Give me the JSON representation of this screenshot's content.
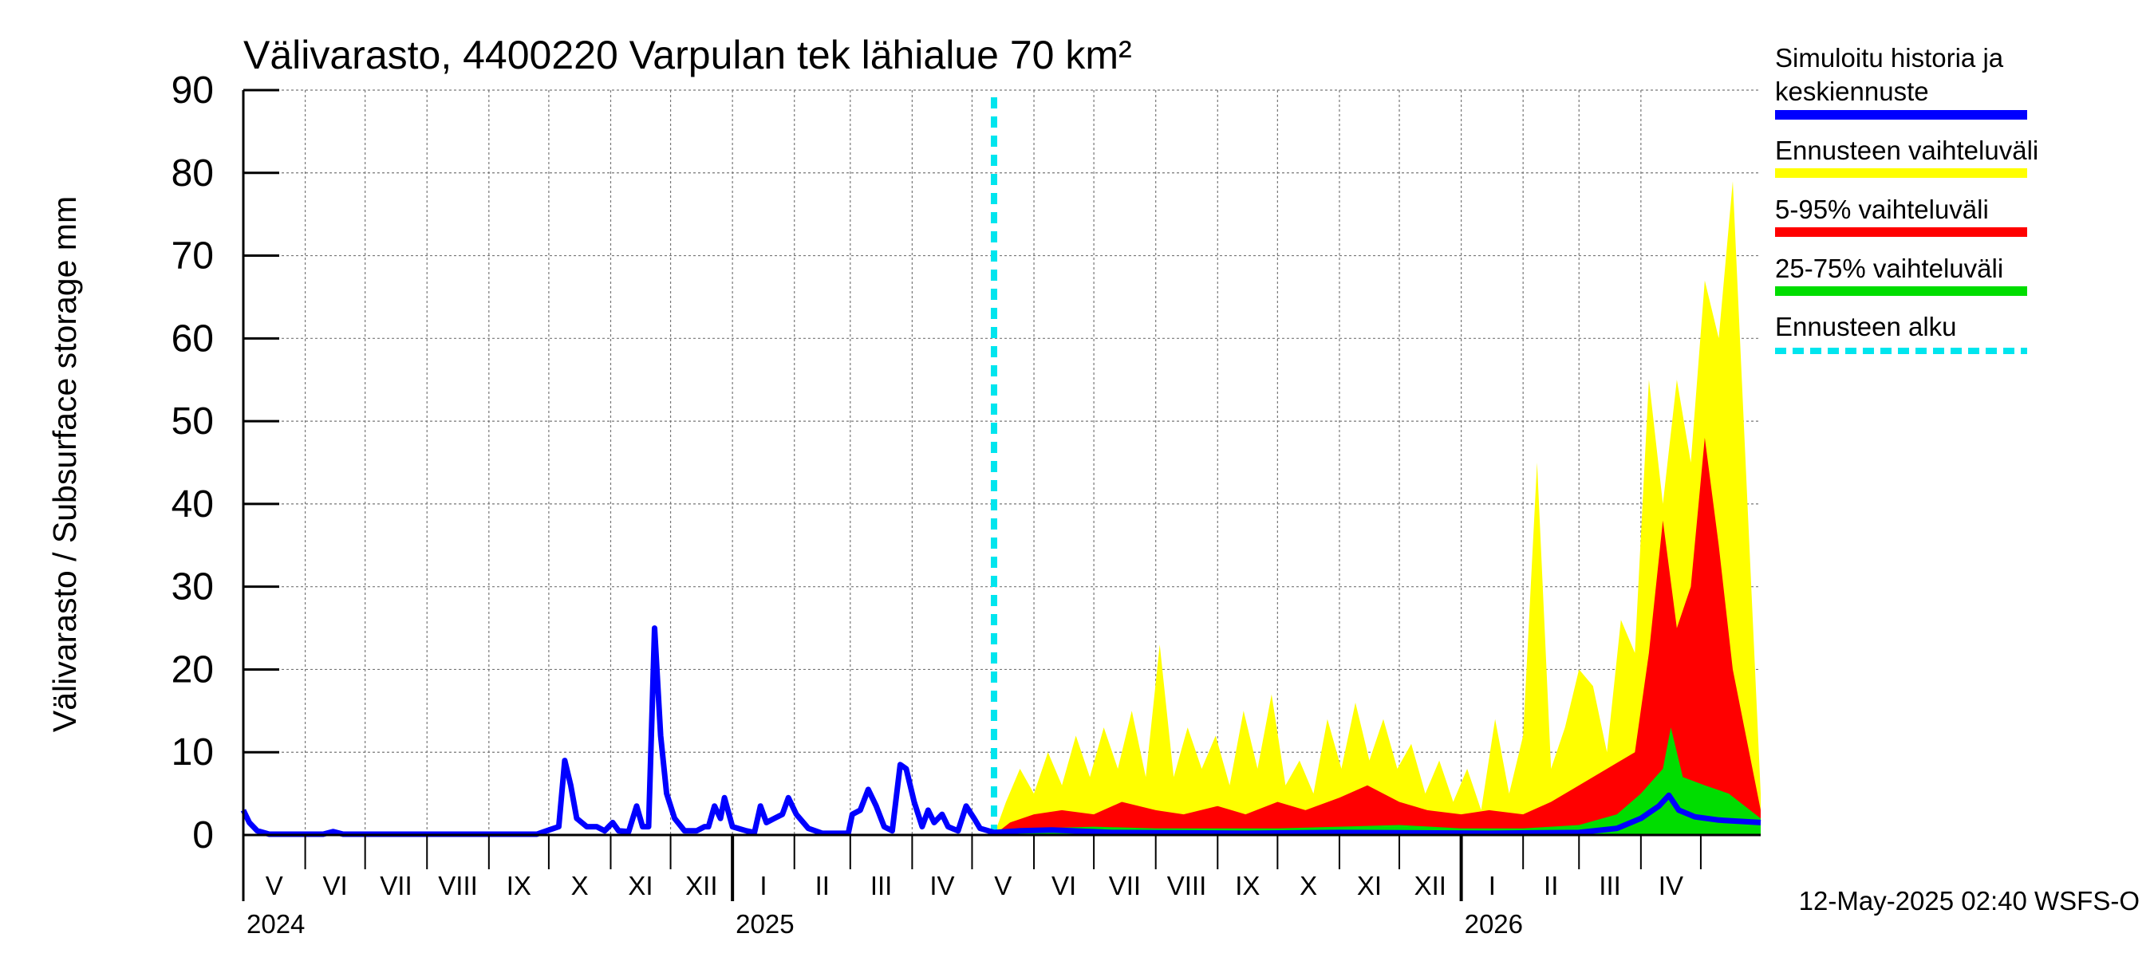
{
  "chart_data": {
    "type": "area",
    "title": "Välivarasto, 4400220 Varpulan tek lähialue 70 km²",
    "ylabel": "Välivarasto / Subsurface storage  mm",
    "ylim": [
      0,
      90
    ],
    "yticks": [
      0,
      10,
      20,
      30,
      40,
      50,
      60,
      70,
      80,
      90
    ],
    "xlim": [
      "2024-05-01",
      "2026-05-31"
    ],
    "grid": true,
    "months": [
      "V",
      "VI",
      "VII",
      "VIII",
      "IX",
      "X",
      "XI",
      "XII",
      "I",
      "II",
      "III",
      "IV",
      "V",
      "VI",
      "VII",
      "VIII",
      "IX",
      "X",
      "XI",
      "XII",
      "I",
      "II",
      "III",
      "IV"
    ],
    "years": [
      "2024",
      "2025",
      "2026"
    ],
    "forecast_start": "2025-05-12",
    "legend": {
      "placement": "right",
      "entries": [
        {
          "label": "Simuloitu historia ja keskiennuste",
          "color": "#0000ff"
        },
        {
          "label": "Ennusteen vaihteluväli",
          "color": "#ffff00"
        },
        {
          "label": "5-95% vaihteluväli",
          "color": "#ff0000"
        },
        {
          "label": "25-75% vaihteluväli",
          "color": "#00dd00"
        },
        {
          "label": "Ennusteen alku",
          "color": "#00e5ee"
        }
      ]
    },
    "series": [
      {
        "name": "Simuloitu historia ja keskiennuste",
        "color": "#0000ff",
        "points": [
          [
            "2024-05-01",
            3.0
          ],
          [
            "2024-05-04",
            1.5
          ],
          [
            "2024-05-08",
            0.5
          ],
          [
            "2024-05-14",
            0.1
          ],
          [
            "2024-06-10",
            0.1
          ],
          [
            "2024-06-15",
            0.4
          ],
          [
            "2024-06-20",
            0.1
          ],
          [
            "2024-09-25",
            0.1
          ],
          [
            "2024-10-01",
            0.6
          ],
          [
            "2024-10-06",
            1.0
          ],
          [
            "2024-10-09",
            9.0
          ],
          [
            "2024-10-12",
            6.0
          ],
          [
            "2024-10-15",
            2.0
          ],
          [
            "2024-10-20",
            1.0
          ],
          [
            "2024-10-25",
            1.0
          ],
          [
            "2024-10-29",
            0.5
          ],
          [
            "2024-11-02",
            1.5
          ],
          [
            "2024-11-05",
            0.5
          ],
          [
            "2024-11-10",
            0.4
          ],
          [
            "2024-11-14",
            3.5
          ],
          [
            "2024-11-17",
            1.0
          ],
          [
            "2024-11-20",
            1.0
          ],
          [
            "2024-11-23",
            25.0
          ],
          [
            "2024-11-26",
            12.0
          ],
          [
            "2024-11-29",
            5.0
          ],
          [
            "2024-12-03",
            2.0
          ],
          [
            "2024-12-08",
            0.5
          ],
          [
            "2024-12-14",
            0.5
          ],
          [
            "2024-12-18",
            1.0
          ],
          [
            "2024-12-20",
            1.0
          ],
          [
            "2024-12-23",
            3.5
          ],
          [
            "2024-12-26",
            2.0
          ],
          [
            "2024-12-28",
            4.5
          ],
          [
            "2025-01-01",
            1.0
          ],
          [
            "2025-01-08",
            0.5
          ],
          [
            "2025-01-12",
            0.3
          ],
          [
            "2025-01-15",
            3.5
          ],
          [
            "2025-01-18",
            1.5
          ],
          [
            "2025-01-22",
            2.0
          ],
          [
            "2025-01-26",
            2.5
          ],
          [
            "2025-01-29",
            4.5
          ],
          [
            "2025-02-02",
            2.5
          ],
          [
            "2025-02-08",
            0.8
          ],
          [
            "2025-02-15",
            0.2
          ],
          [
            "2025-02-28",
            0.2
          ],
          [
            "2025-03-02",
            2.5
          ],
          [
            "2025-03-06",
            3.0
          ],
          [
            "2025-03-10",
            5.5
          ],
          [
            "2025-03-14",
            3.5
          ],
          [
            "2025-03-18",
            1.0
          ],
          [
            "2025-03-22",
            0.5
          ],
          [
            "2025-03-26",
            8.5
          ],
          [
            "2025-03-29",
            8.0
          ],
          [
            "2025-04-02",
            4.0
          ],
          [
            "2025-04-06",
            1.0
          ],
          [
            "2025-04-09",
            3.0
          ],
          [
            "2025-04-12",
            1.5
          ],
          [
            "2025-04-16",
            2.5
          ],
          [
            "2025-04-19",
            1.0
          ],
          [
            "2025-04-24",
            0.5
          ],
          [
            "2025-04-28",
            3.5
          ],
          [
            "2025-05-02",
            2.0
          ],
          [
            "2025-05-05",
            0.8
          ],
          [
            "2025-05-12",
            0.3
          ],
          [
            "2025-05-25",
            0.5
          ],
          [
            "2025-06-10",
            0.6
          ],
          [
            "2025-07-10",
            0.3
          ],
          [
            "2025-09-15",
            0.2
          ],
          [
            "2025-11-01",
            0.3
          ],
          [
            "2026-01-15",
            0.2
          ],
          [
            "2026-03-01",
            0.3
          ],
          [
            "2026-03-20",
            0.8
          ],
          [
            "2026-04-01",
            2.0
          ],
          [
            "2026-04-10",
            3.5
          ],
          [
            "2026-04-15",
            4.8
          ],
          [
            "2026-04-20",
            3.0
          ],
          [
            "2026-04-28",
            2.2
          ],
          [
            "2026-05-10",
            1.8
          ],
          [
            "2026-05-31",
            1.5
          ]
        ]
      },
      {
        "name": "Ennusteen vaihteluväli",
        "color": "#ffff00",
        "points": [
          [
            "2025-05-12",
            0.0
          ],
          [
            "2025-05-18",
            4.0
          ],
          [
            "2025-05-25",
            8.0
          ],
          [
            "2025-06-01",
            5.0
          ],
          [
            "2025-06-08",
            10.0
          ],
          [
            "2025-06-15",
            6.0
          ],
          [
            "2025-06-22",
            12.0
          ],
          [
            "2025-06-29",
            7.0
          ],
          [
            "2025-07-06",
            13.0
          ],
          [
            "2025-07-13",
            8.0
          ],
          [
            "2025-07-20",
            15.0
          ],
          [
            "2025-07-27",
            7.0
          ],
          [
            "2025-08-03",
            23.0
          ],
          [
            "2025-08-10",
            7.0
          ],
          [
            "2025-08-17",
            13.0
          ],
          [
            "2025-08-24",
            8.0
          ],
          [
            "2025-08-31",
            12.0
          ],
          [
            "2025-09-07",
            6.0
          ],
          [
            "2025-09-14",
            15.0
          ],
          [
            "2025-09-21",
            8.0
          ],
          [
            "2025-09-28",
            17.0
          ],
          [
            "2025-10-05",
            6.0
          ],
          [
            "2025-10-12",
            9.0
          ],
          [
            "2025-10-19",
            5.0
          ],
          [
            "2025-10-26",
            14.0
          ],
          [
            "2025-11-02",
            8.0
          ],
          [
            "2025-11-09",
            16.0
          ],
          [
            "2025-11-16",
            9.0
          ],
          [
            "2025-11-23",
            14.0
          ],
          [
            "2025-11-30",
            8.0
          ],
          [
            "2025-12-07",
            11.0
          ],
          [
            "2025-12-14",
            5.0
          ],
          [
            "2025-12-21",
            9.0
          ],
          [
            "2025-12-28",
            4.0
          ],
          [
            "2026-01-04",
            8.0
          ],
          [
            "2026-01-11",
            3.0
          ],
          [
            "2026-01-18",
            14.0
          ],
          [
            "2026-01-25",
            5.0
          ],
          [
            "2026-02-01",
            12.0
          ],
          [
            "2026-02-08",
            45.0
          ],
          [
            "2026-02-15",
            8.0
          ],
          [
            "2026-02-22",
            13.0
          ],
          [
            "2026-03-01",
            20.0
          ],
          [
            "2026-03-08",
            18.0
          ],
          [
            "2026-03-15",
            10.0
          ],
          [
            "2026-03-22",
            26.0
          ],
          [
            "2026-03-29",
            22.0
          ],
          [
            "2026-04-05",
            55.0
          ],
          [
            "2026-04-12",
            40.0
          ],
          [
            "2026-04-19",
            55.0
          ],
          [
            "2026-04-26",
            45.0
          ],
          [
            "2026-05-03",
            67.0
          ],
          [
            "2026-05-10",
            60.0
          ],
          [
            "2026-05-17",
            79.0
          ],
          [
            "2026-05-31",
            5.0
          ]
        ]
      },
      {
        "name": "5-95% vaihteluväli",
        "color": "#ff0000",
        "points": [
          [
            "2025-05-12",
            0.0
          ],
          [
            "2025-05-20",
            1.5
          ],
          [
            "2025-06-01",
            2.5
          ],
          [
            "2025-06-15",
            3.0
          ],
          [
            "2025-07-01",
            2.5
          ],
          [
            "2025-07-15",
            4.0
          ],
          [
            "2025-08-01",
            3.0
          ],
          [
            "2025-08-15",
            2.5
          ],
          [
            "2025-09-01",
            3.5
          ],
          [
            "2025-09-15",
            2.5
          ],
          [
            "2025-10-01",
            4.0
          ],
          [
            "2025-10-15",
            3.0
          ],
          [
            "2025-11-01",
            4.5
          ],
          [
            "2025-11-15",
            6.0
          ],
          [
            "2025-12-01",
            4.0
          ],
          [
            "2025-12-15",
            3.0
          ],
          [
            "2026-01-01",
            2.5
          ],
          [
            "2026-01-15",
            3.0
          ],
          [
            "2026-02-01",
            2.5
          ],
          [
            "2026-02-15",
            4.0
          ],
          [
            "2026-03-01",
            6.0
          ],
          [
            "2026-03-15",
            8.0
          ],
          [
            "2026-03-29",
            10.0
          ],
          [
            "2026-04-05",
            22.0
          ],
          [
            "2026-04-12",
            38.0
          ],
          [
            "2026-04-19",
            25.0
          ],
          [
            "2026-04-26",
            30.0
          ],
          [
            "2026-05-03",
            48.0
          ],
          [
            "2026-05-10",
            35.0
          ],
          [
            "2026-05-17",
            20.0
          ],
          [
            "2026-05-31",
            3.0
          ]
        ]
      },
      {
        "name": "25-75% vaihteluväli",
        "color": "#00dd00",
        "points": [
          [
            "2025-05-12",
            0.0
          ],
          [
            "2025-06-01",
            0.8
          ],
          [
            "2025-07-01",
            1.0
          ],
          [
            "2025-08-01",
            0.8
          ],
          [
            "2025-09-01",
            0.8
          ],
          [
            "2025-10-01",
            0.8
          ],
          [
            "2025-11-01",
            1.0
          ],
          [
            "2025-12-01",
            1.2
          ],
          [
            "2026-01-01",
            0.8
          ],
          [
            "2026-02-01",
            0.8
          ],
          [
            "2026-03-01",
            1.2
          ],
          [
            "2026-03-20",
            2.5
          ],
          [
            "2026-04-01",
            5.0
          ],
          [
            "2026-04-12",
            8.0
          ],
          [
            "2026-04-16",
            13.0
          ],
          [
            "2026-04-22",
            7.0
          ],
          [
            "2026-05-03",
            6.0
          ],
          [
            "2026-05-15",
            5.0
          ],
          [
            "2026-05-31",
            2.0
          ]
        ]
      }
    ]
  },
  "footer": {
    "timestamp": "12-May-2025 02:40 WSFS-O"
  }
}
